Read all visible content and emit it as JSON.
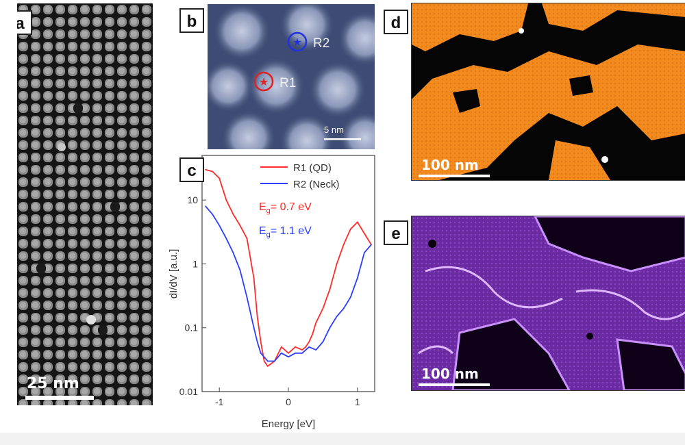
{
  "figure": {
    "panels": {
      "a": {
        "label": "a",
        "scale_bar": "25 nm"
      },
      "b": {
        "label": "b",
        "scale_bar": "5 nm",
        "markers": [
          {
            "name": "R2",
            "color": "#2233dd"
          },
          {
            "name": "R1",
            "color": "#dd2222"
          }
        ]
      },
      "c": {
        "label": "c"
      },
      "d": {
        "label": "d",
        "scale_bar": "100 nm"
      },
      "e": {
        "label": "e",
        "scale_bar": "100 nm"
      }
    },
    "colors": {
      "orange": "#f28a1e",
      "purple": "#9a3ee6",
      "red": "#ff2a2a",
      "blue": "#2a3cff"
    }
  },
  "chart_data": {
    "type": "line",
    "xlabel": "Energy [eV]",
    "ylabel": "dI/dV [a.u.]",
    "xlim": [
      -1.25,
      1.25
    ],
    "ylim": [
      0.01,
      50
    ],
    "yscale": "log",
    "xticks": [
      "-1",
      "0",
      "1"
    ],
    "yticks": [
      "0.01",
      "0.1",
      "1",
      "10"
    ],
    "legend_position": "top-right",
    "annotations": [
      {
        "text": "E",
        "sub": "g",
        "rest": "= 0.7 eV",
        "color": "#ff2a2a"
      },
      {
        "text": "E",
        "sub": "g",
        "rest": "= 1.1 eV",
        "color": "#2a3cff"
      }
    ],
    "series": [
      {
        "name": "R1 (QD)",
        "color": "#ff2a2a",
        "x": [
          -1.2,
          -1.1,
          -1.0,
          -0.9,
          -0.8,
          -0.7,
          -0.6,
          -0.5,
          -0.45,
          -0.4,
          -0.35,
          -0.3,
          -0.2,
          -0.1,
          0.0,
          0.1,
          0.2,
          0.25,
          0.3,
          0.35,
          0.4,
          0.5,
          0.6,
          0.7,
          0.8,
          0.9,
          1.0,
          1.1,
          1.2
        ],
        "y": [
          30,
          28,
          22,
          10,
          6,
          4,
          2.5,
          0.6,
          0.15,
          0.06,
          0.03,
          0.025,
          0.03,
          0.05,
          0.04,
          0.05,
          0.045,
          0.05,
          0.06,
          0.08,
          0.12,
          0.2,
          0.4,
          1.0,
          2.0,
          3.5,
          4.5,
          3.0,
          2.0
        ]
      },
      {
        "name": "R2 (Neck)",
        "color": "#2a3cff",
        "x": [
          -1.2,
          -1.1,
          -1.0,
          -0.9,
          -0.8,
          -0.7,
          -0.6,
          -0.5,
          -0.45,
          -0.4,
          -0.3,
          -0.2,
          -0.1,
          0.0,
          0.1,
          0.2,
          0.3,
          0.4,
          0.5,
          0.6,
          0.7,
          0.8,
          0.9,
          1.0,
          1.1,
          1.2
        ],
        "y": [
          8,
          6,
          4,
          2.5,
          1.5,
          0.8,
          0.3,
          0.1,
          0.06,
          0.04,
          0.03,
          0.03,
          0.04,
          0.035,
          0.04,
          0.04,
          0.05,
          0.045,
          0.06,
          0.1,
          0.15,
          0.2,
          0.3,
          0.6,
          1.5,
          2.0
        ]
      }
    ]
  }
}
